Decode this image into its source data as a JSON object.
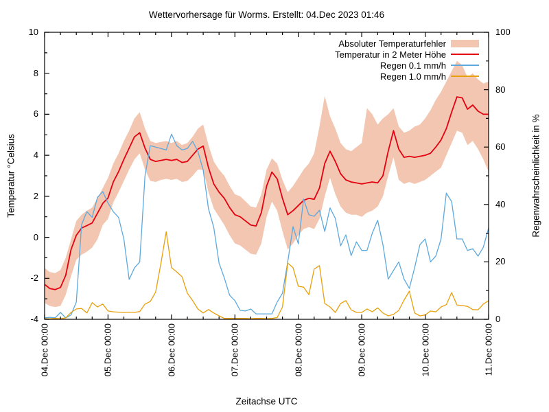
{
  "title": "Wettervorhersage für Worms. Erstellt: 04.Dec 2023 01:46",
  "axes": {
    "left_label": "Temperatur °Celsius",
    "right_label": "Regenwahrscheinlichkeit in %",
    "x_label": "Zeitachse UTC",
    "temp_ticks": [
      "-4",
      "-2",
      "0",
      "2",
      "4",
      "6",
      "8",
      "10"
    ],
    "rain_ticks": [
      "0",
      "20",
      "40",
      "60",
      "80",
      "100"
    ],
    "x_tick_labels": [
      "04.Dec 00:00",
      "05.Dec 00:00",
      "06.Dec 00:00",
      "07.Dec 00:00",
      "08.Dec 00:00",
      "09.Dec 00:00",
      "10.Dec 00:00",
      "11.Dec 00:00"
    ]
  },
  "legend": [
    {
      "label": "Absoluter Temperaturfehler",
      "swatch": "band",
      "color": "#f2c6b1"
    },
    {
      "label": "Temperatur in 2 Meter Höhe",
      "swatch": "line",
      "color": "#e4000f"
    },
    {
      "label": "Regen 0.1 mm/h",
      "swatch": "line",
      "color": "#5da9dd"
    },
    {
      "label": "Regen 1.0 mm/h",
      "swatch": "line",
      "color": "#e8a00a"
    }
  ],
  "chart_data": {
    "type": "line",
    "title": "Wettervorhersage für Worms. Erstellt: 04.Dec 2023 01:46",
    "x_axis": {
      "label": "Zeitachse UTC",
      "start": "04.Dec 00:00",
      "end": "11.Dec 00:00",
      "unit": "hours since 04.Dec 2023 00:00 UTC",
      "step_hours": 2,
      "range_hours": [
        0,
        168
      ],
      "major_tick_hours": 24,
      "minor_tick_hours": 6
    },
    "y_left": {
      "label": "Temperatur °Celsius",
      "min": -4,
      "max": 10,
      "tick": 2,
      "minor": 1
    },
    "y_right": {
      "label": "Regenwahrscheinlichkeit in %",
      "min": 0,
      "max": 100,
      "tick": 20,
      "minor": 10
    },
    "grid": false,
    "legend_position": "top-right-inside",
    "series": [
      {
        "id": "temp-error",
        "name": "Absoluter Temperaturfehler",
        "type": "band",
        "axis": "temp",
        "color": "#f2c6b1",
        "upper": [
          -1.5,
          -1.7,
          -1.75,
          -1.6,
          -1.0,
          -0.1,
          0.8,
          1.1,
          1.3,
          1.45,
          1.9,
          2.4,
          2.9,
          3.6,
          4.1,
          4.7,
          5.2,
          5.8,
          6.1,
          5.3,
          4.7,
          4.6,
          4.65,
          4.7,
          4.6,
          4.7,
          4.5,
          4.6,
          4.9,
          5.3,
          5.5,
          4.5,
          3.7,
          3.3,
          3.0,
          2.5,
          2.1,
          2.0,
          1.75,
          1.5,
          1.45,
          2.1,
          3.3,
          3.85,
          3.6,
          2.8,
          2.2,
          2.5,
          2.9,
          3.3,
          3.6,
          4.1,
          5.4,
          6.9,
          5.9,
          5.3,
          4.6,
          4.3,
          4.2,
          4.4,
          4.6,
          6.3,
          6.0,
          5.5,
          5.8,
          6.0,
          6.3,
          5.4,
          5.1,
          5.2,
          5.4,
          5.5,
          5.8,
          6.2,
          6.7,
          7.1,
          7.6,
          8.1,
          8.6,
          8.4,
          7.8,
          8.0,
          7.7,
          7.5,
          7.6
        ],
        "lower": [
          -3.2,
          -3.35,
          -3.4,
          -3.35,
          -2.8,
          -1.9,
          -1.1,
          -0.85,
          -0.7,
          -0.5,
          -0.1,
          0.6,
          0.9,
          1.7,
          2.2,
          2.75,
          3.3,
          3.8,
          4.1,
          3.3,
          2.75,
          2.7,
          2.8,
          2.85,
          2.8,
          2.85,
          2.7,
          2.75,
          3.0,
          3.3,
          3.3,
          2.2,
          1.4,
          1.0,
          0.6,
          0.1,
          -0.3,
          -0.4,
          -0.6,
          -0.8,
          -0.85,
          -0.3,
          1.0,
          1.74,
          1.3,
          0.3,
          -0.6,
          -0.3,
          0.1,
          0.4,
          0.5,
          0.4,
          0.9,
          2.0,
          2.9,
          2.1,
          1.5,
          1.2,
          1.1,
          1.1,
          1.0,
          1.2,
          1.3,
          1.5,
          2.0,
          3.0,
          3.9,
          2.8,
          2.6,
          2.7,
          2.6,
          2.7,
          2.8,
          3.0,
          3.2,
          3.4,
          4.0,
          4.6,
          5.2,
          5.1,
          4.5,
          4.7,
          4.3,
          3.8,
          3.2
        ]
      },
      {
        "id": "temperature",
        "name": "Temperatur in 2 Meter Höhe",
        "type": "line",
        "axis": "temp",
        "color": "#e4000f",
        "values": [
          -2.3,
          -2.5,
          -2.55,
          -2.45,
          -1.85,
          -0.6,
          0.1,
          0.45,
          0.57,
          0.7,
          1.17,
          1.65,
          1.92,
          2.7,
          3.2,
          3.8,
          4.35,
          4.9,
          5.1,
          4.35,
          3.8,
          3.7,
          3.75,
          3.8,
          3.75,
          3.8,
          3.65,
          3.7,
          4.0,
          4.3,
          4.45,
          3.4,
          2.6,
          2.2,
          1.9,
          1.45,
          1.1,
          1.0,
          0.8,
          0.6,
          0.55,
          1.2,
          2.5,
          3.18,
          2.85,
          1.9,
          1.1,
          1.3,
          1.55,
          1.8,
          1.9,
          1.85,
          2.4,
          3.6,
          4.2,
          3.7,
          3.1,
          2.8,
          2.7,
          2.65,
          2.6,
          2.65,
          2.7,
          2.65,
          3.0,
          4.2,
          5.2,
          4.3,
          3.9,
          3.95,
          3.9,
          3.95,
          4.0,
          4.1,
          4.4,
          4.75,
          5.3,
          6.1,
          6.85,
          6.8,
          6.25,
          6.45,
          6.15,
          6.0,
          6.0
        ]
      },
      {
        "id": "rain-01",
        "name": "Regen 0.1 mm/h",
        "type": "line",
        "axis": "rain",
        "color": "#5da9dd",
        "values": [
          0.5,
          0.7,
          0.5,
          2.4,
          0.5,
          1.5,
          6,
          33,
          37.5,
          35.5,
          42.5,
          44.5,
          40.5,
          37.5,
          35.5,
          28,
          13.9,
          17.9,
          20,
          50,
          60.5,
          60,
          59.5,
          59,
          64.5,
          60.5,
          59,
          59.5,
          62,
          58.5,
          52,
          38.5,
          32,
          19.6,
          14.4,
          8.4,
          6.5,
          3.1,
          2.9,
          3.6,
          1.9,
          1.9,
          1.9,
          1.9,
          6,
          9.1,
          20,
          32.3,
          26.3,
          41.9,
          36.4,
          35.9,
          38,
          30.6,
          38.8,
          35.2,
          25.6,
          29.4,
          22.2,
          27,
          24,
          24,
          30,
          34.5,
          26,
          14,
          17,
          20,
          14,
          10.8,
          18,
          26,
          28,
          20,
          22,
          28,
          44,
          41,
          28,
          28,
          24,
          24.6,
          22,
          25.1,
          31.8
        ]
      },
      {
        "id": "rain-10",
        "name": "Regen 1.0 mm/h",
        "type": "line",
        "axis": "rain",
        "color": "#e8a00a",
        "values": [
          0.2,
          0.2,
          0.3,
          0.2,
          0.5,
          2.4,
          3.6,
          3.8,
          2.2,
          5.8,
          4.3,
          5.3,
          2.9,
          2.6,
          2.5,
          2.4,
          2.5,
          2.4,
          2.7,
          5.3,
          6.2,
          9.5,
          19.5,
          30.5,
          18,
          16.5,
          14.8,
          9.1,
          6.5,
          3.6,
          2.2,
          3.4,
          2.2,
          1.2,
          0.3,
          0.3,
          0.3,
          0.3,
          0.3,
          0.2,
          0.3,
          0.3,
          0.2,
          0.3,
          0.6,
          4.3,
          19.6,
          18,
          11.5,
          11.2,
          8.6,
          17.5,
          18.7,
          5.5,
          4.3,
          2.4,
          5.5,
          6.5,
          3.3,
          2.4,
          2.4,
          3.6,
          2.6,
          4.0,
          2.2,
          1.2,
          1.7,
          3.1,
          6.7,
          9.8,
          2.2,
          1.2,
          1.5,
          2.9,
          2.6,
          4.3,
          5.1,
          9.3,
          5.0,
          4.8,
          4.5,
          3.4,
          3.3,
          5.3,
          6.5
        ]
      }
    ]
  }
}
